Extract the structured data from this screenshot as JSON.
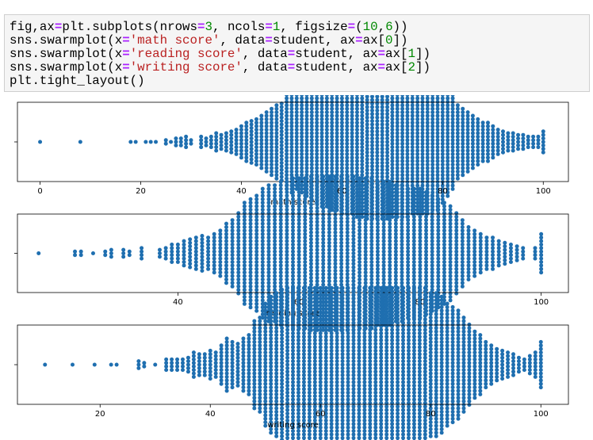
{
  "code_cell": {
    "lines": [
      [
        [
          "fig,ax",
          "plain"
        ],
        [
          "=",
          "op"
        ],
        [
          "plt.subplots(nrows",
          "plain"
        ],
        [
          "=",
          "op"
        ],
        [
          "3",
          "num"
        ],
        [
          ", ncols",
          "plain"
        ],
        [
          "=",
          "op"
        ],
        [
          "1",
          "num"
        ],
        [
          ", figsize",
          "plain"
        ],
        [
          "=",
          "op"
        ],
        [
          "(",
          "plain"
        ],
        [
          "10",
          "num"
        ],
        [
          ",",
          "plain"
        ],
        [
          "6",
          "num"
        ],
        [
          "))",
          "plain"
        ]
      ],
      [
        [
          "sns.swarmplot(x",
          "plain"
        ],
        [
          "=",
          "op"
        ],
        [
          "'math score'",
          "str"
        ],
        [
          ", data",
          "plain"
        ],
        [
          "=",
          "op"
        ],
        [
          "student, ax",
          "plain"
        ],
        [
          "=",
          "op"
        ],
        [
          "ax[",
          "plain"
        ],
        [
          "0",
          "num"
        ],
        [
          "])",
          "plain"
        ]
      ],
      [
        [
          "sns.swarmplot(x",
          "plain"
        ],
        [
          "=",
          "op"
        ],
        [
          "'reading score'",
          "str"
        ],
        [
          ", data",
          "plain"
        ],
        [
          "=",
          "op"
        ],
        [
          "student, ax",
          "plain"
        ],
        [
          "=",
          "op"
        ],
        [
          "ax[",
          "plain"
        ],
        [
          "1",
          "num"
        ],
        [
          "])",
          "plain"
        ]
      ],
      [
        [
          "sns.swarmplot(x",
          "plain"
        ],
        [
          "=",
          "op"
        ],
        [
          "'writing score'",
          "str"
        ],
        [
          ", data",
          "plain"
        ],
        [
          "=",
          "op"
        ],
        [
          "student, ax",
          "plain"
        ],
        [
          "=",
          "op"
        ],
        [
          "ax[",
          "plain"
        ],
        [
          "2",
          "num"
        ],
        [
          "])",
          "plain"
        ]
      ],
      [
        [
          "plt.tight_layout()",
          "plain"
        ]
      ]
    ]
  },
  "colors": {
    "marker": "#1f6fb0",
    "axes": "#000000",
    "code_bg": "#f5f5f5"
  },
  "chart_data": [
    {
      "type": "scatter",
      "xlabel": "math score",
      "xlim": [
        -4.5,
        105
      ],
      "xticks": [
        0,
        20,
        40,
        60,
        80,
        100
      ],
      "ylabel": "",
      "grid": false,
      "x": [
        0,
        8,
        18,
        19,
        21,
        22,
        23,
        25,
        26,
        27,
        28,
        29,
        30,
        32,
        33,
        34,
        35,
        36,
        37,
        38,
        39,
        40,
        41,
        42,
        43,
        44,
        45,
        46,
        47,
        48,
        49,
        50,
        51,
        52,
        53,
        54,
        55,
        56,
        57,
        58,
        59,
        60,
        61,
        62,
        63,
        64,
        65,
        66,
        67,
        68,
        69,
        70,
        71,
        72,
        73,
        74,
        75,
        76,
        77,
        78,
        79,
        80,
        81,
        82,
        83,
        84,
        85,
        86,
        87,
        88,
        89,
        90,
        91,
        92,
        93,
        94,
        95,
        96,
        97,
        98,
        99,
        100
      ],
      "counts": [
        1,
        1,
        1,
        1,
        1,
        1,
        1,
        2,
        1,
        3,
        3,
        4,
        2,
        4,
        3,
        4,
        6,
        5,
        6,
        7,
        8,
        10,
        12,
        13,
        14,
        16,
        18,
        20,
        22,
        23,
        28,
        30,
        28,
        30,
        32,
        34,
        36,
        38,
        38,
        40,
        40,
        42,
        42,
        42,
        44,
        44,
        45,
        45,
        45,
        45,
        45,
        44,
        44,
        44,
        44,
        42,
        42,
        42,
        42,
        40,
        40,
        36,
        32,
        28,
        22,
        20,
        18,
        16,
        14,
        12,
        12,
        10,
        8,
        7,
        6,
        6,
        5,
        5,
        4,
        4,
        4,
        7
      ]
    },
    {
      "type": "scatter",
      "xlabel": "reading score",
      "xlim": [
        13.5,
        104.5
      ],
      "xticks": [
        40,
        60,
        80,
        100
      ],
      "ylabel": "",
      "grid": false,
      "x": [
        17,
        23,
        24,
        26,
        28,
        29,
        31,
        32,
        34,
        37,
        38,
        39,
        40,
        41,
        42,
        43,
        44,
        45,
        46,
        47,
        48,
        49,
        50,
        51,
        52,
        53,
        54,
        55,
        56,
        57,
        58,
        59,
        60,
        61,
        62,
        63,
        64,
        65,
        66,
        67,
        68,
        69,
        70,
        71,
        72,
        73,
        74,
        75,
        76,
        77,
        78,
        79,
        80,
        81,
        82,
        83,
        84,
        85,
        86,
        87,
        88,
        89,
        90,
        91,
        92,
        93,
        94,
        95,
        96,
        97,
        99,
        100
      ],
      "counts": [
        1,
        2,
        2,
        1,
        2,
        3,
        3,
        2,
        4,
        3,
        4,
        6,
        6,
        8,
        9,
        10,
        11,
        10,
        12,
        14,
        18,
        20,
        24,
        30,
        32,
        34,
        38,
        40,
        40,
        42,
        42,
        44,
        44,
        44,
        45,
        45,
        45,
        45,
        45,
        45,
        45,
        45,
        44,
        44,
        44,
        42,
        42,
        42,
        40,
        40,
        38,
        38,
        38,
        36,
        34,
        32,
        30,
        28,
        24,
        20,
        16,
        14,
        12,
        10,
        10,
        8,
        7,
        6,
        5,
        4,
        4,
        12
      ]
    },
    {
      "type": "scatter",
      "xlabel": "writing score",
      "xlim": [
        5,
        105
      ],
      "xticks": [
        20,
        40,
        60,
        80,
        100
      ],
      "ylabel": "",
      "grid": false,
      "x": [
        10,
        15,
        19,
        22,
        23,
        27,
        28,
        30,
        32,
        33,
        34,
        35,
        36,
        37,
        38,
        39,
        40,
        41,
        42,
        43,
        44,
        45,
        46,
        47,
        48,
        49,
        50,
        51,
        52,
        53,
        54,
        55,
        56,
        57,
        58,
        59,
        60,
        61,
        62,
        63,
        64,
        65,
        66,
        67,
        68,
        69,
        70,
        71,
        72,
        73,
        74,
        75,
        76,
        77,
        78,
        79,
        80,
        81,
        82,
        83,
        84,
        85,
        86,
        87,
        88,
        89,
        90,
        91,
        92,
        93,
        94,
        95,
        96,
        97,
        98,
        99,
        100
      ],
      "counts": [
        1,
        1,
        1,
        1,
        1,
        3,
        2,
        1,
        4,
        4,
        4,
        4,
        5,
        8,
        7,
        7,
        9,
        8,
        12,
        16,
        14,
        13,
        16,
        18,
        26,
        28,
        36,
        40,
        42,
        44,
        45,
        45,
        45,
        45,
        45,
        45,
        45,
        45,
        45,
        45,
        45,
        45,
        45,
        45,
        45,
        45,
        45,
        45,
        45,
        45,
        45,
        45,
        45,
        45,
        45,
        45,
        42,
        42,
        40,
        36,
        34,
        32,
        28,
        24,
        20,
        18,
        14,
        12,
        10,
        9,
        8,
        7,
        5,
        4,
        6,
        8,
        14
      ]
    }
  ]
}
